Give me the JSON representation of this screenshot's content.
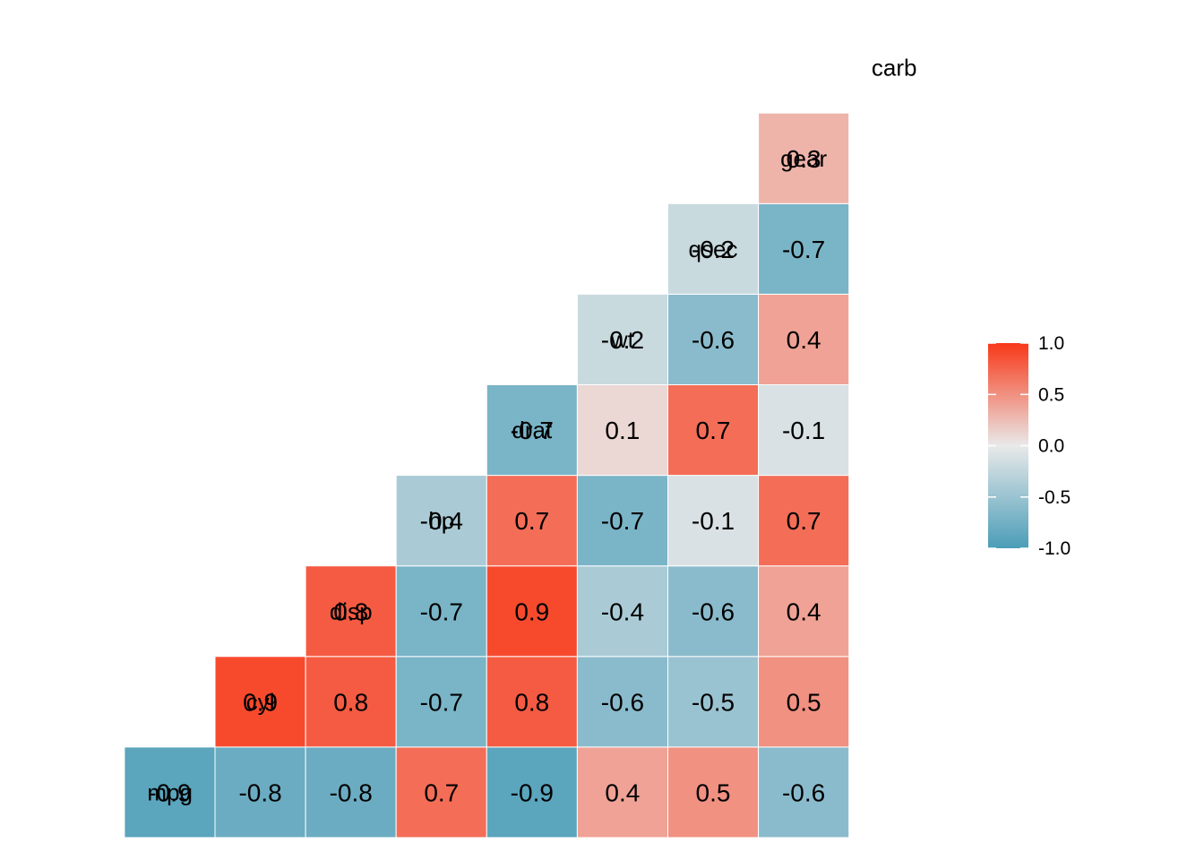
{
  "chart_data": {
    "type": "heatmap",
    "variables": [
      "mpg",
      "cyl",
      "disp",
      "hp",
      "drat",
      "wt",
      "qsec",
      "gear",
      "carb"
    ],
    "cells": [
      {
        "row": "mpg",
        "col": "mpg",
        "value": -0.9
      },
      {
        "row": "mpg",
        "col": "cyl",
        "value": -0.8
      },
      {
        "row": "mpg",
        "col": "disp",
        "value": -0.8
      },
      {
        "row": "mpg",
        "col": "hp",
        "value": 0.7
      },
      {
        "row": "mpg",
        "col": "drat",
        "value": -0.9
      },
      {
        "row": "mpg",
        "col": "wt",
        "value": 0.4
      },
      {
        "row": "mpg",
        "col": "qsec",
        "value": 0.5
      },
      {
        "row": "mpg",
        "col": "gear",
        "value": -0.6
      },
      {
        "row": "cyl",
        "col": "cyl",
        "value": 0.9
      },
      {
        "row": "cyl",
        "col": "disp",
        "value": 0.8
      },
      {
        "row": "cyl",
        "col": "hp",
        "value": -0.7
      },
      {
        "row": "cyl",
        "col": "drat",
        "value": 0.8
      },
      {
        "row": "cyl",
        "col": "wt",
        "value": -0.6
      },
      {
        "row": "cyl",
        "col": "qsec",
        "value": -0.5
      },
      {
        "row": "cyl",
        "col": "gear",
        "value": 0.5
      },
      {
        "row": "disp",
        "col": "disp",
        "value": 0.8
      },
      {
        "row": "disp",
        "col": "hp",
        "value": -0.7
      },
      {
        "row": "disp",
        "col": "drat",
        "value": 0.9
      },
      {
        "row": "disp",
        "col": "wt",
        "value": -0.4
      },
      {
        "row": "disp",
        "col": "qsec",
        "value": -0.6
      },
      {
        "row": "disp",
        "col": "gear",
        "value": 0.4
      },
      {
        "row": "hp",
        "col": "hp",
        "value": -0.4
      },
      {
        "row": "hp",
        "col": "drat",
        "value": 0.7
      },
      {
        "row": "hp",
        "col": "wt",
        "value": -0.7
      },
      {
        "row": "hp",
        "col": "qsec",
        "value": -0.1
      },
      {
        "row": "hp",
        "col": "gear",
        "value": 0.7
      },
      {
        "row": "drat",
        "col": "drat",
        "value": -0.7
      },
      {
        "row": "drat",
        "col": "wt",
        "value": 0.1
      },
      {
        "row": "drat",
        "col": "qsec",
        "value": 0.7
      },
      {
        "row": "drat",
        "col": "gear",
        "value": -0.1
      },
      {
        "row": "wt",
        "col": "wt",
        "value": -0.2
      },
      {
        "row": "wt",
        "col": "qsec",
        "value": -0.6
      },
      {
        "row": "wt",
        "col": "gear",
        "value": 0.4
      },
      {
        "row": "qsec",
        "col": "qsec",
        "value": -0.2
      },
      {
        "row": "qsec",
        "col": "gear",
        "value": -0.7
      },
      {
        "row": "gear",
        "col": "gear",
        "value": 0.3
      }
    ],
    "legend": {
      "position": "right",
      "ticks": [
        "1.0",
        "0.5",
        "0.0",
        "-0.5",
        "-1.0"
      ],
      "range": [
        -1,
        1
      ],
      "colors": {
        "low": "#4B9DB8",
        "mid": "#E9E9E9",
        "high": "#F83818"
      }
    },
    "grid": false,
    "title": "",
    "xlabel": "",
    "ylabel": ""
  }
}
